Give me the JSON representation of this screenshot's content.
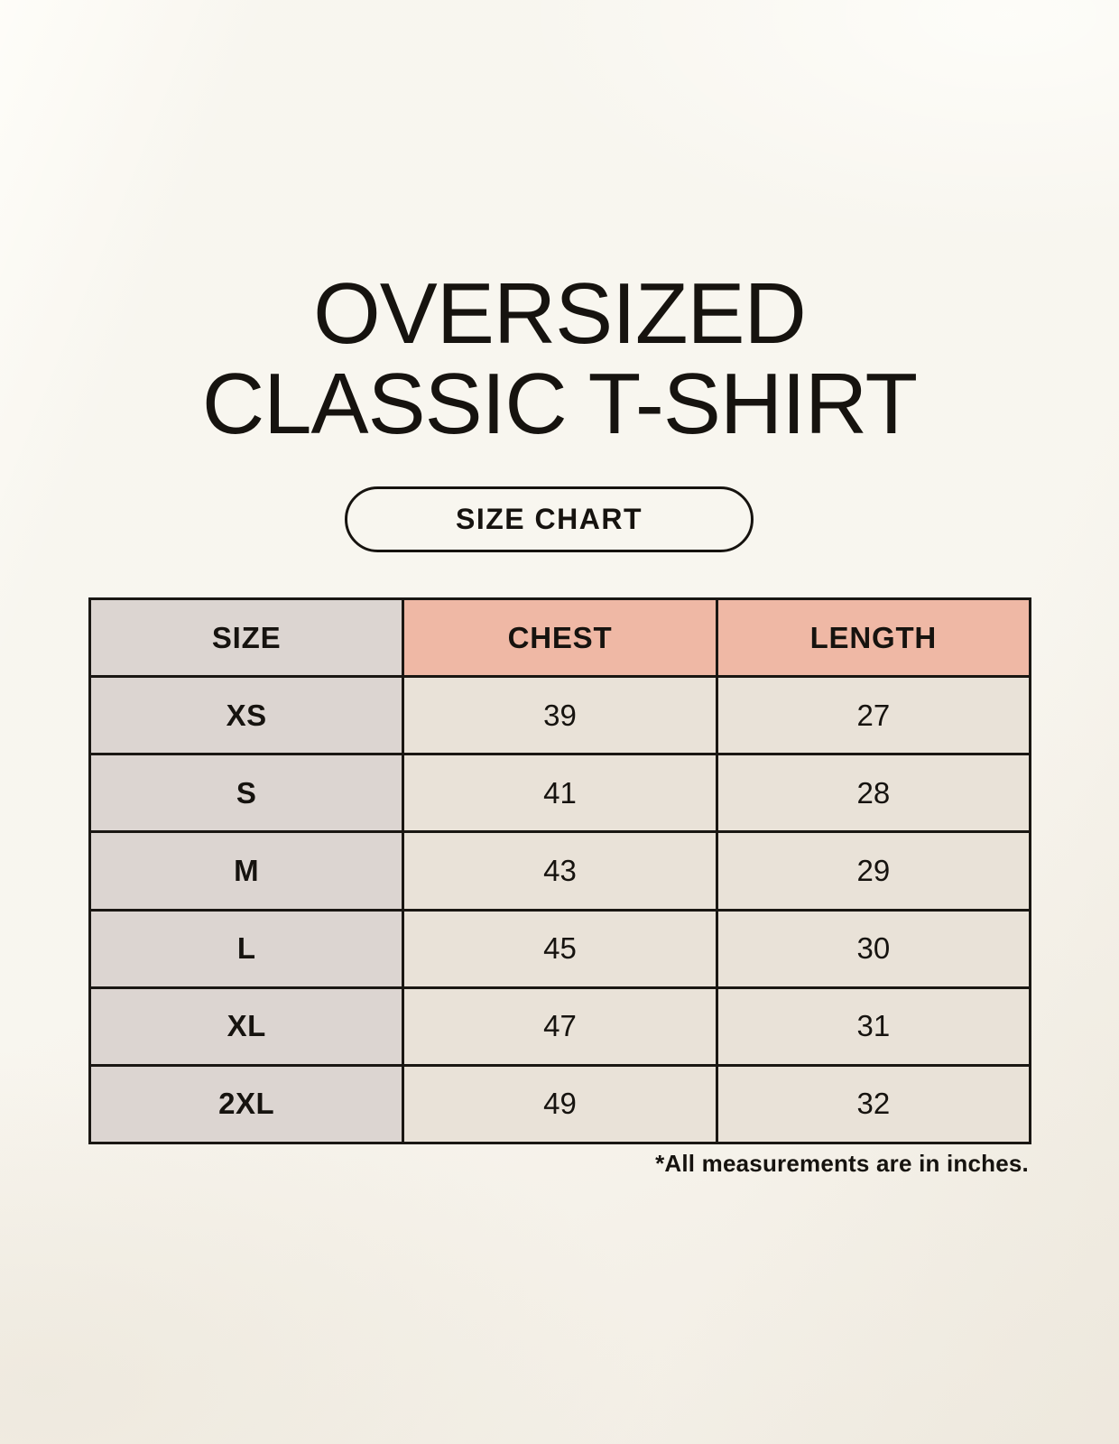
{
  "page": {
    "title_line1": "OVERSIZED",
    "title_line2": "CLASSIC T-SHIRT",
    "button_label": "SIZE CHART",
    "footnote": "*All measurements are in inches."
  },
  "table": {
    "headers": [
      "SIZE",
      "CHEST",
      "LENGTH"
    ],
    "rows": [
      {
        "size": "XS",
        "chest": "39",
        "length": "27"
      },
      {
        "size": "S",
        "chest": "41",
        "length": "28"
      },
      {
        "size": "M",
        "chest": "43",
        "length": "29"
      },
      {
        "size": "L",
        "chest": "45",
        "length": "30"
      },
      {
        "size": "XL",
        "chest": "47",
        "length": "31"
      },
      {
        "size": "2XL",
        "chest": "49",
        "length": "32"
      }
    ]
  },
  "colors": {
    "background": "#f5f1e9",
    "accent_salmon": "#efb8a5",
    "size_column_gray": "#dcd5d1",
    "value_cell_cream": "#e9e2d8",
    "border": "#1a1713",
    "text": "#16130f"
  },
  "chart_data": {
    "type": "table",
    "title": "OVERSIZED CLASSIC T-SHIRT",
    "subtitle": "SIZE CHART",
    "columns": [
      "SIZE",
      "CHEST",
      "LENGTH"
    ],
    "rows": [
      [
        "XS",
        39,
        27
      ],
      [
        "S",
        41,
        28
      ],
      [
        "M",
        43,
        29
      ],
      [
        "L",
        45,
        30
      ],
      [
        "XL",
        47,
        31
      ],
      [
        "2XL",
        49,
        32
      ]
    ],
    "note": "*All measurements are in inches.",
    "units": "inches"
  }
}
